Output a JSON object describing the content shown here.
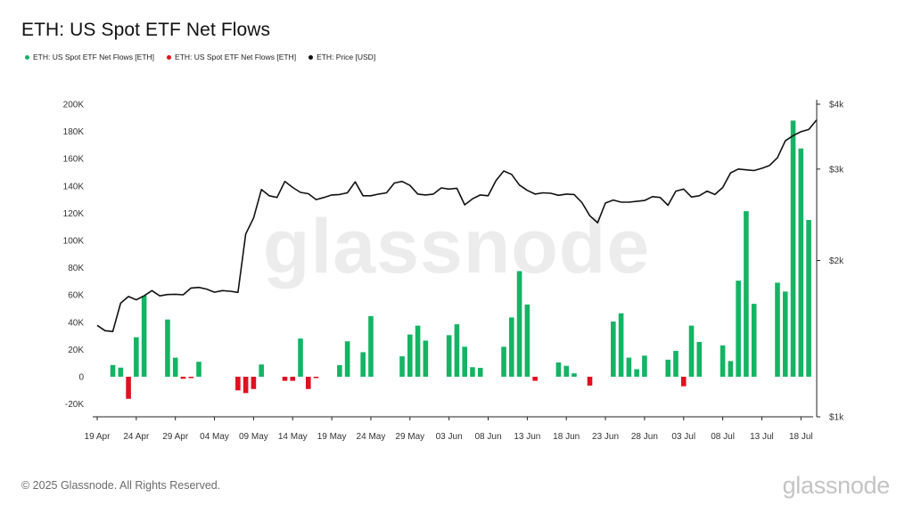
{
  "title": "ETH: US Spot ETF Net Flows",
  "legend": [
    {
      "label": "ETH: US Spot ETF Net Flows [ETH]",
      "color": "#14b464"
    },
    {
      "label": "ETH: US Spot ETF Net Flows [ETH]",
      "color": "#e0101f"
    },
    {
      "label": "ETH: Price [USD]",
      "color": "#111111"
    }
  ],
  "watermark": "glassnode",
  "footer": {
    "copyright": "© 2025 Glassnode. All Rights Reserved.",
    "logo": "glassnode"
  },
  "colors": {
    "positive": "#14b464",
    "negative": "#e0101f",
    "price": "#111111",
    "axis": "#222222"
  },
  "chart_data": {
    "type": "bar",
    "title": "ETH: US Spot ETF Net Flows",
    "x_start": "2024-04-19",
    "x_ticks": [
      "19 Apr",
      "24 Apr",
      "29 Apr",
      "04 May",
      "09 May",
      "14 May",
      "19 May",
      "24 May",
      "29 May",
      "03 Jun",
      "08 Jun",
      "13 Jun",
      "18 Jun",
      "23 Jun",
      "28 Jun",
      "03 Jul",
      "08 Jul",
      "13 Jul",
      "18 Jul"
    ],
    "y_left": {
      "ticks": [
        "200K",
        "180K",
        "160K",
        "140K",
        "120K",
        "100K",
        "80K",
        "60K",
        "40K",
        "20K",
        "0",
        "-20K"
      ],
      "range": [
        -20000,
        200000
      ]
    },
    "y_right": {
      "ticks": [
        "$4k",
        "$3k",
        "$2k",
        "$1k"
      ],
      "scale": "log",
      "range": [
        1000,
        4000
      ]
    },
    "flows": [
      {
        "day": 2,
        "value": 8600
      },
      {
        "day": 3,
        "value": 6700
      },
      {
        "day": 4,
        "value": -16200
      },
      {
        "day": 5,
        "value": 29000
      },
      {
        "day": 6,
        "value": 59500
      },
      {
        "day": 9,
        "value": 42000
      },
      {
        "day": 10,
        "value": 14000
      },
      {
        "day": 11,
        "value": -1500
      },
      {
        "day": 12,
        "value": -1000
      },
      {
        "day": 13,
        "value": 11000
      },
      {
        "day": 18,
        "value": -10000
      },
      {
        "day": 19,
        "value": -12000
      },
      {
        "day": 20,
        "value": -9000
      },
      {
        "day": 21,
        "value": 9000
      },
      {
        "day": 24,
        "value": -3000
      },
      {
        "day": 25,
        "value": -3000
      },
      {
        "day": 26,
        "value": 28000
      },
      {
        "day": 27,
        "value": -9000
      },
      {
        "day": 28,
        "value": -1000
      },
      {
        "day": 31,
        "value": 8500
      },
      {
        "day": 32,
        "value": 26000
      },
      {
        "day": 34,
        "value": 18000
      },
      {
        "day": 35,
        "value": 44500
      },
      {
        "day": 39,
        "value": 15000
      },
      {
        "day": 40,
        "value": 31000
      },
      {
        "day": 41,
        "value": 37500
      },
      {
        "day": 42,
        "value": 26500
      },
      {
        "day": 45,
        "value": 30500
      },
      {
        "day": 46,
        "value": 38500
      },
      {
        "day": 47,
        "value": 22000
      },
      {
        "day": 48,
        "value": 7000
      },
      {
        "day": 49,
        "value": 6500
      },
      {
        "day": 52,
        "value": 22000
      },
      {
        "day": 53,
        "value": 43500
      },
      {
        "day": 54,
        "value": 77500
      },
      {
        "day": 55,
        "value": 53000
      },
      {
        "day": 56,
        "value": -3000
      },
      {
        "day": 59,
        "value": 10500
      },
      {
        "day": 60,
        "value": 8000
      },
      {
        "day": 61,
        "value": 2500
      },
      {
        "day": 63,
        "value": -6500
      },
      {
        "day": 66,
        "value": 40500
      },
      {
        "day": 67,
        "value": 46500
      },
      {
        "day": 68,
        "value": 14000
      },
      {
        "day": 69,
        "value": 5500
      },
      {
        "day": 70,
        "value": 15500
      },
      {
        "day": 73,
        "value": 12500
      },
      {
        "day": 74,
        "value": 19000
      },
      {
        "day": 75,
        "value": -7000
      },
      {
        "day": 76,
        "value": 37500
      },
      {
        "day": 77,
        "value": 25500
      },
      {
        "day": 80,
        "value": 23000
      },
      {
        "day": 81,
        "value": 11500
      },
      {
        "day": 82,
        "value": 70500
      },
      {
        "day": 83,
        "value": 121500
      },
      {
        "day": 84,
        "value": 53500
      },
      {
        "day": 87,
        "value": 69000
      },
      {
        "day": 88,
        "value": 62500
      },
      {
        "day": 89,
        "value": 188000
      },
      {
        "day": 90,
        "value": 167500
      },
      {
        "day": 91,
        "value": 115000
      }
    ],
    "price": [
      [
        0,
        1500
      ],
      [
        1,
        1465
      ],
      [
        2,
        1460
      ],
      [
        3,
        1655
      ],
      [
        4,
        1705
      ],
      [
        5,
        1680
      ],
      [
        6,
        1710
      ],
      [
        7,
        1750
      ],
      [
        8,
        1710
      ],
      [
        9,
        1720
      ],
      [
        10,
        1722
      ],
      [
        11,
        1718
      ],
      [
        12,
        1770
      ],
      [
        13,
        1775
      ],
      [
        14,
        1762
      ],
      [
        15,
        1738
      ],
      [
        16,
        1750
      ],
      [
        17,
        1745
      ],
      [
        18,
        1736
      ],
      [
        19,
        2250
      ],
      [
        20,
        2415
      ],
      [
        21,
        2740
      ],
      [
        22,
        2665
      ],
      [
        23,
        2645
      ],
      [
        24,
        2840
      ],
      [
        25,
        2765
      ],
      [
        26,
        2705
      ],
      [
        27,
        2690
      ],
      [
        28,
        2620
      ],
      [
        29,
        2645
      ],
      [
        30,
        2675
      ],
      [
        31,
        2680
      ],
      [
        32,
        2700
      ],
      [
        33,
        2835
      ],
      [
        34,
        2665
      ],
      [
        35,
        2665
      ],
      [
        36,
        2685
      ],
      [
        37,
        2700
      ],
      [
        38,
        2820
      ],
      [
        39,
        2840
      ],
      [
        40,
        2790
      ],
      [
        41,
        2685
      ],
      [
        42,
        2675
      ],
      [
        43,
        2685
      ],
      [
        44,
        2760
      ],
      [
        45,
        2745
      ],
      [
        46,
        2755
      ],
      [
        47,
        2560
      ],
      [
        48,
        2630
      ],
      [
        49,
        2675
      ],
      [
        50,
        2665
      ],
      [
        51,
        2850
      ],
      [
        52,
        2975
      ],
      [
        53,
        2930
      ],
      [
        54,
        2795
      ],
      [
        55,
        2730
      ],
      [
        56,
        2685
      ],
      [
        57,
        2700
      ],
      [
        58,
        2695
      ],
      [
        59,
        2670
      ],
      [
        60,
        2685
      ],
      [
        61,
        2680
      ],
      [
        62,
        2585
      ],
      [
        63,
        2440
      ],
      [
        64,
        2365
      ],
      [
        65,
        2580
      ],
      [
        66,
        2615
      ],
      [
        67,
        2590
      ],
      [
        68,
        2590
      ],
      [
        69,
        2600
      ],
      [
        70,
        2610
      ],
      [
        71,
        2655
      ],
      [
        72,
        2645
      ],
      [
        73,
        2555
      ],
      [
        74,
        2720
      ],
      [
        75,
        2745
      ],
      [
        76,
        2650
      ],
      [
        77,
        2665
      ],
      [
        78,
        2720
      ],
      [
        79,
        2680
      ],
      [
        80,
        2765
      ],
      [
        81,
        2950
      ],
      [
        82,
        3000
      ],
      [
        83,
        2990
      ],
      [
        84,
        2980
      ],
      [
        85,
        3010
      ],
      [
        86,
        3050
      ],
      [
        87,
        3155
      ],
      [
        88,
        3400
      ],
      [
        89,
        3480
      ],
      [
        90,
        3540
      ],
      [
        91,
        3575
      ],
      [
        92,
        3730
      ]
    ]
  }
}
